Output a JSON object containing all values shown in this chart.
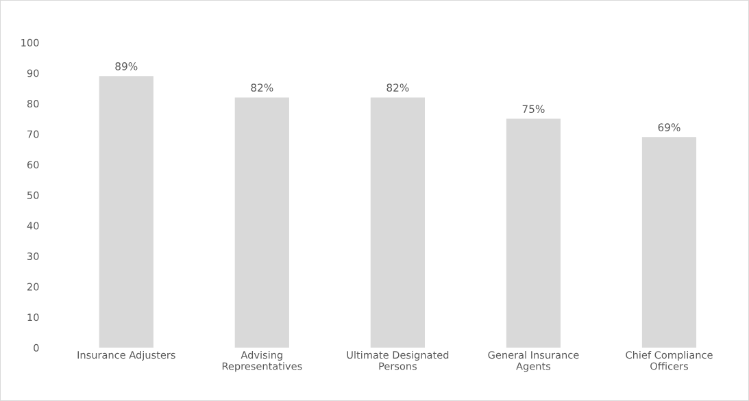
{
  "chart_data": {
    "type": "bar",
    "categories": [
      "Insurance Adjusters",
      "Advising\nRepresentatives",
      "Ultimate Designated\nPersons",
      "General Insurance\nAgents",
      "Chief Compliance\nOfficers"
    ],
    "values": [
      89,
      82,
      82,
      75,
      69
    ],
    "value_labels": [
      "89%",
      "82%",
      "82%",
      "75%",
      "69%"
    ],
    "color": "#d9d9d9",
    "ylim": [
      0,
      100
    ],
    "yticks": [
      0,
      10,
      20,
      30,
      40,
      50,
      60,
      70,
      80,
      90,
      100
    ],
    "grid": false
  }
}
